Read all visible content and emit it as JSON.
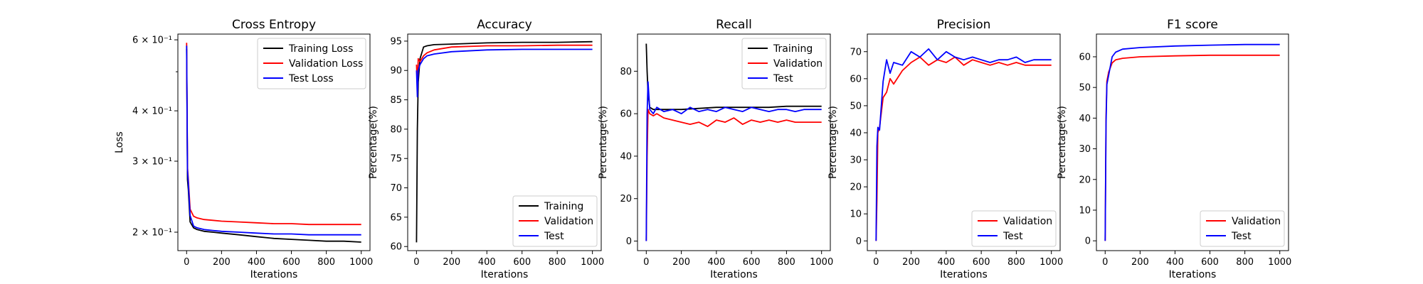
{
  "chart_data": [
    {
      "id": "cross-entropy",
      "type": "line",
      "title": "Cross Entropy",
      "xlabel": "Iterations",
      "ylabel": "Loss",
      "yscale": "log",
      "xlim": [
        -50,
        1050
      ],
      "ylim": [
        0.18,
        0.62
      ],
      "xticks": [
        0,
        200,
        400,
        600,
        800,
        1000
      ],
      "yticks": [
        {
          "value": 0.2,
          "label": "2 × 10⁻¹"
        },
        {
          "value": 0.3,
          "label": "3 × 10⁻¹"
        },
        {
          "value": 0.4,
          "label": "4 × 10⁻¹"
        },
        {
          "value": 0.6,
          "label": "6 × 10⁻¹"
        }
      ],
      "minor_yticks": [
        0.5
      ],
      "grid": false,
      "legend_position": "top-right",
      "series": [
        {
          "name": "Training Loss",
          "color": "#000000",
          "x": [
            0,
            5,
            10,
            20,
            40,
            60,
            100,
            150,
            200,
            300,
            400,
            500,
            600,
            700,
            800,
            900,
            1000
          ],
          "y": [
            0.57,
            0.27,
            0.255,
            0.212,
            0.205,
            0.203,
            0.201,
            0.2,
            0.199,
            0.197,
            0.195,
            0.193,
            0.192,
            0.191,
            0.19,
            0.19,
            0.189
          ]
        },
        {
          "name": "Validation Loss",
          "color": "#ff0000",
          "x": [
            0,
            5,
            10,
            20,
            40,
            60,
            100,
            150,
            200,
            300,
            400,
            500,
            600,
            700,
            800,
            900,
            1000
          ],
          "y": [
            0.59,
            0.29,
            0.27,
            0.228,
            0.219,
            0.217,
            0.215,
            0.214,
            0.213,
            0.212,
            0.211,
            0.21,
            0.21,
            0.209,
            0.209,
            0.209,
            0.209
          ]
        },
        {
          "name": "Test Loss",
          "color": "#0000ff",
          "x": [
            0,
            5,
            10,
            20,
            40,
            60,
            100,
            150,
            200,
            300,
            400,
            500,
            600,
            700,
            800,
            900,
            1000
          ],
          "y": [
            0.58,
            0.285,
            0.265,
            0.22,
            0.207,
            0.205,
            0.203,
            0.202,
            0.201,
            0.2,
            0.199,
            0.198,
            0.198,
            0.197,
            0.197,
            0.197,
            0.197
          ]
        }
      ]
    },
    {
      "id": "accuracy",
      "type": "line",
      "title": "Accuracy",
      "xlabel": "Iterations",
      "ylabel": "Percentage(%)",
      "xlim": [
        -50,
        1050
      ],
      "ylim": [
        59.3,
        96.2
      ],
      "xticks": [
        0,
        200,
        400,
        600,
        800,
        1000
      ],
      "yticks": [
        60,
        65,
        70,
        75,
        80,
        85,
        90,
        95
      ],
      "grid": false,
      "legend_position": "bottom-right",
      "series": [
        {
          "name": "Training",
          "color": "#000000",
          "x": [
            0,
            5,
            10,
            20,
            40,
            60,
            100,
            200,
            400,
            600,
            800,
            1000
          ],
          "y": [
            60.7,
            80,
            88,
            92,
            94,
            94.2,
            94.4,
            94.5,
            94.7,
            94.8,
            94.8,
            94.9
          ]
        },
        {
          "name": "Validation",
          "color": "#ff0000",
          "x": [
            0,
            5,
            10,
            20,
            40,
            60,
            100,
            200,
            400,
            600,
            800,
            1000
          ],
          "y": [
            91,
            87,
            92,
            91.5,
            92.5,
            93,
            93.5,
            94,
            94.2,
            94.2,
            94.3,
            94.3
          ]
        },
        {
          "name": "Test",
          "color": "#0000ff",
          "x": [
            0,
            5,
            10,
            20,
            40,
            60,
            100,
            200,
            400,
            600,
            800,
            1000
          ],
          "y": [
            90,
            85.5,
            90,
            91,
            92,
            92.5,
            92.8,
            93.2,
            93.5,
            93.6,
            93.6,
            93.6
          ]
        }
      ]
    },
    {
      "id": "recall",
      "type": "line",
      "title": "Recall",
      "xlabel": "Iterations",
      "ylabel": "Percentage(%)",
      "xlim": [
        -50,
        1050
      ],
      "ylim": [
        -4.5,
        97.5
      ],
      "xticks": [
        0,
        200,
        400,
        600,
        800,
        1000
      ],
      "yticks": [
        0,
        20,
        40,
        60,
        80
      ],
      "grid": false,
      "legend_position": "top-right",
      "series": [
        {
          "name": "Training",
          "color": "#000000",
          "x": [
            0,
            5,
            10,
            20,
            40,
            60,
            100,
            200,
            300,
            400,
            500,
            600,
            700,
            800,
            900,
            1000
          ],
          "y": [
            93,
            80,
            70,
            63,
            62,
            62,
            62,
            62,
            62.5,
            63,
            63,
            63,
            63,
            63.5,
            63.5,
            63.5
          ]
        },
        {
          "name": "Validation",
          "color": "#ff0000",
          "x": [
            0,
            5,
            10,
            20,
            40,
            60,
            100,
            150,
            200,
            250,
            300,
            350,
            400,
            450,
            500,
            550,
            600,
            650,
            700,
            750,
            800,
            850,
            900,
            950,
            1000
          ],
          "y": [
            0,
            40,
            62,
            60,
            59,
            60,
            58,
            57,
            56,
            55,
            56,
            54,
            57,
            56,
            58,
            55,
            57,
            56,
            57,
            56,
            57,
            56,
            56,
            56,
            56
          ]
        },
        {
          "name": "Test",
          "color": "#0000ff",
          "x": [
            0,
            5,
            10,
            20,
            40,
            60,
            100,
            150,
            200,
            250,
            300,
            350,
            400,
            450,
            500,
            550,
            600,
            650,
            700,
            750,
            800,
            850,
            900,
            950,
            1000
          ],
          "y": [
            0,
            60,
            75,
            62,
            60,
            63,
            61,
            62,
            60,
            63,
            61,
            62,
            61,
            63,
            62,
            61,
            63,
            62,
            61,
            62,
            62,
            61,
            62,
            62,
            62
          ]
        }
      ]
    },
    {
      "id": "precision",
      "type": "line",
      "title": "Precision",
      "xlabel": "Iterations",
      "ylabel": "Percentage(%)",
      "xlim": [
        -50,
        1050
      ],
      "ylim": [
        -3.6,
        76.5
      ],
      "xticks": [
        0,
        200,
        400,
        600,
        800,
        1000
      ],
      "yticks": [
        0,
        10,
        20,
        30,
        40,
        50,
        60,
        70
      ],
      "grid": false,
      "legend_position": "bottom-right",
      "series": [
        {
          "name": "Validation",
          "color": "#ff0000",
          "x": [
            0,
            5,
            10,
            20,
            40,
            60,
            80,
            100,
            150,
            200,
            250,
            300,
            350,
            400,
            450,
            500,
            550,
            600,
            650,
            700,
            750,
            800,
            850,
            900,
            950,
            1000
          ],
          "y": [
            0,
            15,
            40,
            42,
            53,
            55,
            60,
            58,
            63,
            66,
            68,
            65,
            67,
            66,
            68,
            65,
            67,
            66,
            65,
            66,
            65,
            66,
            65,
            65,
            65,
            65
          ]
        },
        {
          "name": "Test",
          "color": "#0000ff",
          "x": [
            0,
            5,
            10,
            20,
            40,
            60,
            80,
            100,
            150,
            200,
            250,
            300,
            350,
            400,
            450,
            500,
            550,
            600,
            650,
            700,
            750,
            800,
            850,
            900,
            950,
            1000
          ],
          "y": [
            0,
            35,
            42,
            41,
            59,
            67,
            62,
            66,
            65,
            70,
            68,
            71,
            67,
            70,
            68,
            67,
            68,
            67,
            66,
            67,
            67,
            68,
            66,
            67,
            67,
            67
          ]
        }
      ]
    },
    {
      "id": "f1-score",
      "type": "line",
      "title": "F1 score",
      "xlabel": "Iterations",
      "ylabel": "Percentage(%)",
      "xlim": [
        -50,
        1050
      ],
      "ylim": [
        -3.2,
        67.4
      ],
      "xticks": [
        0,
        200,
        400,
        600,
        800,
        1000
      ],
      "yticks": [
        0,
        10,
        20,
        30,
        40,
        50,
        60
      ],
      "grid": false,
      "legend_position": "bottom-right",
      "series": [
        {
          "name": "Validation",
          "color": "#ff0000",
          "x": [
            0,
            5,
            10,
            20,
            40,
            60,
            100,
            200,
            400,
            600,
            800,
            1000
          ],
          "y": [
            0,
            40,
            52,
            55,
            58,
            59,
            59.5,
            60,
            60.3,
            60.5,
            60.5,
            60.5
          ]
        },
        {
          "name": "Test",
          "color": "#0000ff",
          "x": [
            0,
            5,
            10,
            20,
            40,
            60,
            100,
            200,
            400,
            600,
            800,
            1000
          ],
          "y": [
            0,
            38,
            51,
            54,
            60,
            61.5,
            62.5,
            63,
            63.5,
            63.8,
            64,
            64
          ]
        }
      ]
    }
  ]
}
